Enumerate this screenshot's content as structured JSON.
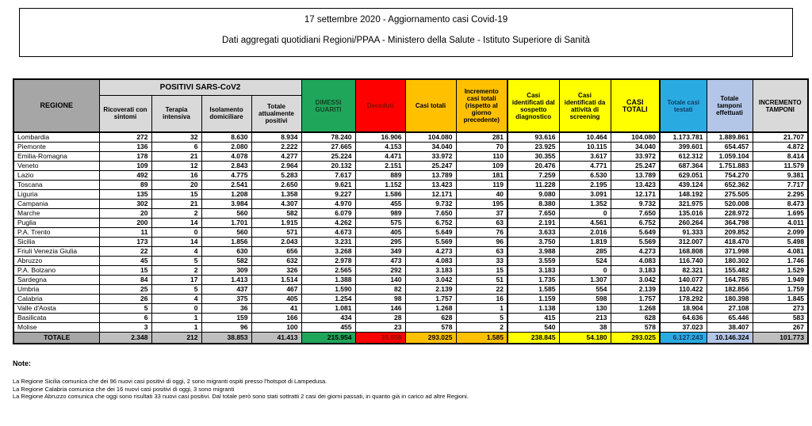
{
  "header": {
    "line1": "17 settembre 2020 - Aggiornamento casi Covid-19",
    "line2": "Dati aggregati quotidiani Regioni/PPAA - Ministero della Salute - Istituto Superiore di Sanità"
  },
  "table": {
    "headers": {
      "regione": "REGIONE",
      "group_positivi": "POSITIVI SARS-CoV2",
      "ricoverati": "Ricoverati con sintomi",
      "terapia": "Terapia intensiva",
      "isolamento": "Isolamento domiciliare",
      "totale_positivi": "Totale attualmente positivi",
      "dimessi": "DIMESSI GUARITI",
      "deceduti": "Deceduti",
      "casi_totali": "Casi totali",
      "incremento_casi": "Incremento casi totali (rispetto al giorno precedente)",
      "sospetto": "Casi identificati dal sospetto diagnostico",
      "screening": "Casi identificati da attività di screening",
      "casi_totali_2": "CASI TOTALI",
      "testati": "Totale casi testati",
      "tamponi": "Totale tamponi effettuati",
      "incremento_tamponi": "INCREMENTO TAMPONI"
    },
    "rows": [
      {
        "region": "Lombardia",
        "values": [
          "272",
          "32",
          "8.630",
          "8.934",
          "78.240",
          "16.906",
          "104.080",
          "281",
          "93.616",
          "10.464",
          "104.080",
          "1.173.781",
          "1.889.861",
          "21.707"
        ]
      },
      {
        "region": "Piemonte",
        "values": [
          "136",
          "6",
          "2.080",
          "2.222",
          "27.665",
          "4.153",
          "34.040",
          "70",
          "23.925",
          "10.115",
          "34.040",
          "399.601",
          "654.457",
          "4.872"
        ]
      },
      {
        "region": "Emilia-Romagna",
        "values": [
          "178",
          "21",
          "4.078",
          "4.277",
          "25.224",
          "4.471",
          "33.972",
          "110",
          "30.355",
          "3.617",
          "33.972",
          "612.312",
          "1.059.104",
          "8.414"
        ]
      },
      {
        "region": "Veneto",
        "values": [
          "109",
          "12",
          "2.843",
          "2.964",
          "20.132",
          "2.151",
          "25.247",
          "109",
          "20.476",
          "4.771",
          "25.247",
          "687.364",
          "1.751.883",
          "11.579"
        ]
      },
      {
        "region": "Lazio",
        "values": [
          "492",
          "16",
          "4.775",
          "5.283",
          "7.617",
          "889",
          "13.789",
          "181",
          "7.259",
          "6.530",
          "13.789",
          "629.051",
          "754.270",
          "9.381"
        ]
      },
      {
        "region": "Toscana",
        "values": [
          "89",
          "20",
          "2.541",
          "2.650",
          "9.621",
          "1.152",
          "13.423",
          "119",
          "11.228",
          "2.195",
          "13.423",
          "439.124",
          "652.362",
          "7.717"
        ]
      },
      {
        "region": "Liguria",
        "values": [
          "135",
          "15",
          "1.208",
          "1.358",
          "9.227",
          "1.586",
          "12.171",
          "40",
          "9.080",
          "3.091",
          "12.171",
          "148.192",
          "275.505",
          "2.295"
        ]
      },
      {
        "region": "Campania",
        "values": [
          "302",
          "21",
          "3.984",
          "4.307",
          "4.970",
          "455",
          "9.732",
          "195",
          "8.380",
          "1.352",
          "9.732",
          "321.975",
          "520.008",
          "8.473"
        ]
      },
      {
        "region": "Marche",
        "values": [
          "20",
          "2",
          "560",
          "582",
          "6.079",
          "989",
          "7.650",
          "37",
          "7.650",
          "0",
          "7.650",
          "135.016",
          "228.972",
          "1.695"
        ]
      },
      {
        "region": "Puglia",
        "values": [
          "200",
          "14",
          "1.701",
          "1.915",
          "4.262",
          "575",
          "6.752",
          "63",
          "2.191",
          "4.561",
          "6.752",
          "260.264",
          "364.798",
          "4.011"
        ]
      },
      {
        "region": "P.A. Trento",
        "values": [
          "11",
          "0",
          "560",
          "571",
          "4.673",
          "405",
          "5.649",
          "76",
          "3.633",
          "2.016",
          "5.649",
          "91.333",
          "209.852",
          "2.099"
        ]
      },
      {
        "region": "Sicilia",
        "values": [
          "173",
          "14",
          "1.856",
          "2.043",
          "3.231",
          "295",
          "5.569",
          "96",
          "3.750",
          "1.819",
          "5.569",
          "312.007",
          "418.470",
          "5.498"
        ]
      },
      {
        "region": "Friuli Venezia Giulia",
        "values": [
          "22",
          "4",
          "630",
          "656",
          "3.268",
          "349",
          "4.273",
          "63",
          "3.988",
          "285",
          "4.273",
          "168.808",
          "371.998",
          "4.081"
        ]
      },
      {
        "region": "Abruzzo",
        "values": [
          "45",
          "5",
          "582",
          "632",
          "2.978",
          "473",
          "4.083",
          "33",
          "3.559",
          "524",
          "4.083",
          "116.740",
          "180.302",
          "1.746"
        ]
      },
      {
        "region": "P.A. Bolzano",
        "values": [
          "15",
          "2",
          "309",
          "326",
          "2.565",
          "292",
          "3.183",
          "15",
          "3.183",
          "0",
          "3.183",
          "82.321",
          "155.482",
          "1.529"
        ]
      },
      {
        "region": "Sardegna",
        "values": [
          "84",
          "17",
          "1.413",
          "1.514",
          "1.388",
          "140",
          "3.042",
          "51",
          "1.735",
          "1.307",
          "3.042",
          "140.077",
          "164.785",
          "1.949"
        ]
      },
      {
        "region": "Umbria",
        "values": [
          "25",
          "5",
          "437",
          "467",
          "1.590",
          "82",
          "2.139",
          "22",
          "1.585",
          "554",
          "2.139",
          "110.422",
          "182.856",
          "1.759"
        ]
      },
      {
        "region": "Calabria",
        "values": [
          "26",
          "4",
          "375",
          "405",
          "1.254",
          "98",
          "1.757",
          "16",
          "1.159",
          "598",
          "1.757",
          "178.292",
          "180.398",
          "1.845"
        ]
      },
      {
        "region": "Valle d'Aosta",
        "values": [
          "5",
          "0",
          "36",
          "41",
          "1.081",
          "146",
          "1.268",
          "1",
          "1.138",
          "130",
          "1.268",
          "18.904",
          "27.108",
          "273"
        ]
      },
      {
        "region": "Basilicata",
        "values": [
          "6",
          "1",
          "159",
          "166",
          "434",
          "28",
          "628",
          "5",
          "415",
          "213",
          "628",
          "64.636",
          "65.446",
          "583"
        ]
      },
      {
        "region": "Molise",
        "values": [
          "3",
          "1",
          "96",
          "100",
          "455",
          "23",
          "578",
          "2",
          "540",
          "38",
          "578",
          "37.023",
          "38.407",
          "267"
        ]
      }
    ],
    "totale": {
      "region": "TOTALE",
      "values": [
        "2.348",
        "212",
        "38.853",
        "41.413",
        "215.954",
        "35.658",
        "293.025",
        "1.585",
        "238.845",
        "54.180",
        "293.025",
        "6.127.243",
        "10.146.324",
        "101.773"
      ]
    }
  },
  "notes": {
    "title": "Note:",
    "lines": [
      "La Regione Sicilia comunica che dei 96 nuovi casi positivi di oggi, 2 sono migranti ospiti presso l'hotspot di Lampedusa.",
      "La Regione Calabria comunica che dei 16 nuovi casi positivi di oggi, 3 sono migranti",
      "La Regione Abruzzo comunica che oggi sono risultati 33 nuovi casi positivi. Dal totale però sono stati sottratti 2 casi dei giorni passati, in quanto già in carico ad altre Regioni."
    ]
  },
  "colors": {
    "green": "#1FA65A",
    "red": "#FE0000",
    "dark_red_text": "#801000",
    "orange": "#FFC000",
    "yellow": "#FFFF00",
    "blue": "#29ABE2",
    "periwinkle": "#B4C6E7",
    "header_gray": "#A6A6A6",
    "light_gray": "#D9D9D9",
    "totale_gray": "#BFBFBF"
  }
}
